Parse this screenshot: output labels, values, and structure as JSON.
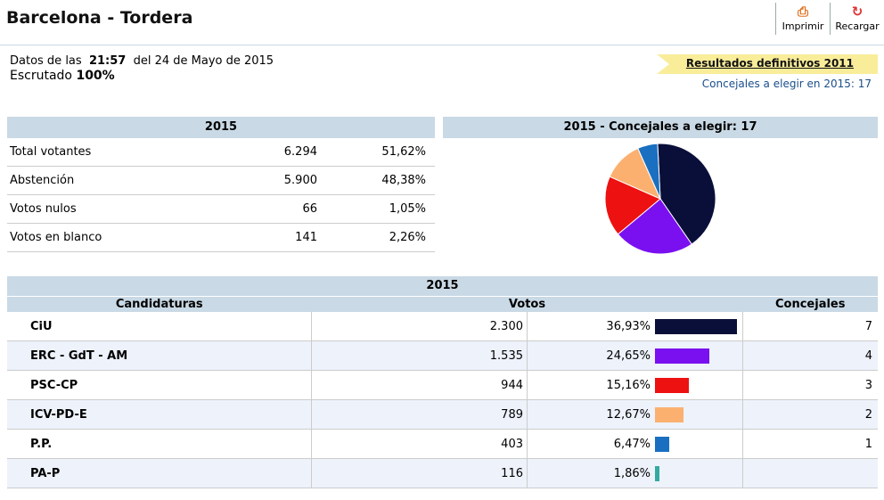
{
  "header": {
    "title": "Barcelona - Tordera",
    "print_label": "Imprimir",
    "reload_label": "Recargar",
    "print_icon": "printer-icon",
    "reload_icon": "reload-icon"
  },
  "info": {
    "datos_prefix": "Datos de las",
    "time": "21:57",
    "date_text": "del 24 de Mayo de 2015",
    "escrutado_label": "Escrutado",
    "escrutado_value": "100%"
  },
  "banner": {
    "link": "Resultados definitivos 2011",
    "concejales_note": "Concejales a elegir en 2015: 17"
  },
  "summary": {
    "header": "2015",
    "rows": [
      {
        "label": "Total votantes",
        "value": "6.294",
        "pct": "51,62%"
      },
      {
        "label": "Abstención",
        "value": "5.900",
        "pct": "48,38%"
      },
      {
        "label": "Votos nulos",
        "value": "66",
        "pct": "1,05%"
      },
      {
        "label": "Votos en blanco",
        "value": "141",
        "pct": "2,26%"
      }
    ]
  },
  "pie_header": "2015 - Concejales a elegir: 17",
  "results": {
    "caption": "2015",
    "col_candidaturas": "Candidaturas",
    "col_votos": "Votos",
    "col_concejales": "Concejales",
    "rows": [
      {
        "party": "CiU",
        "votes": "2.300",
        "pct": "36,93%",
        "pct_value": 36.93,
        "seats": "7",
        "color": "#0a0f3a"
      },
      {
        "party": "ERC - GdT - AM",
        "votes": "1.535",
        "pct": "24,65%",
        "pct_value": 24.65,
        "seats": "4",
        "color": "#7a10f0"
      },
      {
        "party": "PSC-CP",
        "votes": "944",
        "pct": "15,16%",
        "pct_value": 15.16,
        "seats": "3",
        "color": "#ee1111"
      },
      {
        "party": "ICV-PD-E",
        "votes": "789",
        "pct": "12,67%",
        "pct_value": 12.67,
        "seats": "2",
        "color": "#fbb070"
      },
      {
        "party": "P.P.",
        "votes": "403",
        "pct": "6,47%",
        "pct_value": 6.47,
        "seats": "1",
        "color": "#1a6fc0"
      },
      {
        "party": "PA-P",
        "votes": "116",
        "pct": "1,86%",
        "pct_value": 1.86,
        "seats": "",
        "color": "#33aaa0"
      }
    ]
  }
}
